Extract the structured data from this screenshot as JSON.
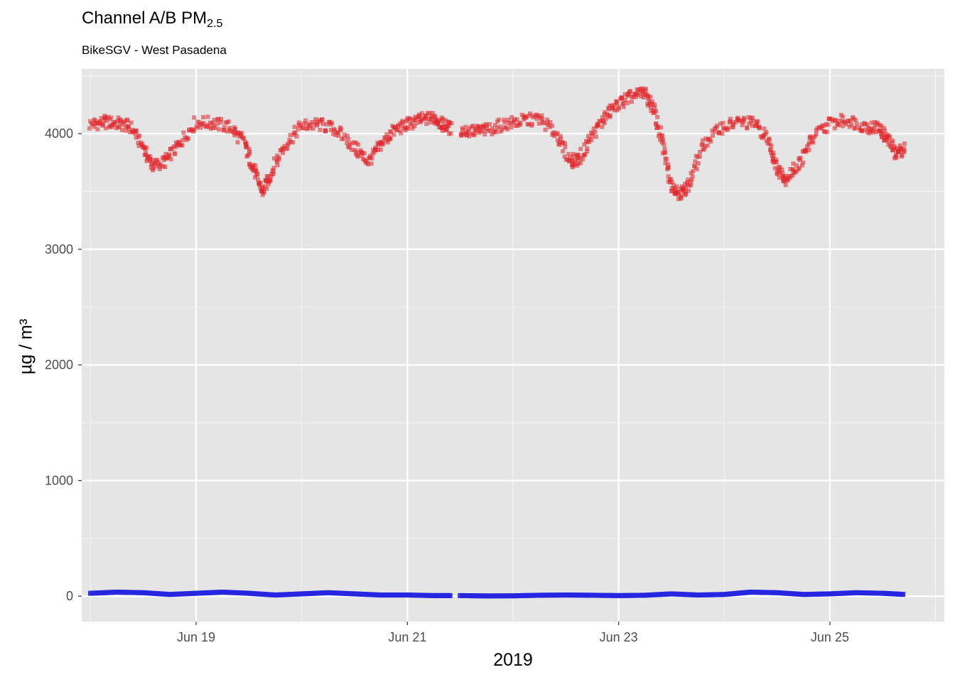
{
  "title": {
    "main": "Channel A/B PM",
    "sub": "2.5"
  },
  "subtitle": "BikeSGV - West Pasadena",
  "chart_data": {
    "type": "scatter",
    "title": "Channel A/B PM2.5",
    "subtitle": "BikeSGV - West Pasadena",
    "xlabel": "2019",
    "ylabel": "µg / m³",
    "xlim": [
      "2019-06-17 22:00",
      "2019-06-26 02:00"
    ],
    "ylim": [
      -220,
      4560
    ],
    "y_ticks": [
      0,
      1000,
      2000,
      3000,
      4000
    ],
    "x_ticks": [
      {
        "label": "Jun 19",
        "date": "2019-06-19"
      },
      {
        "label": "Jun 21",
        "date": "2019-06-21"
      },
      {
        "label": "Jun 23",
        "date": "2019-06-23"
      },
      {
        "label": "Jun 25",
        "date": "2019-06-25"
      }
    ],
    "grid": true,
    "background": "#e5e5e5",
    "series": [
      {
        "color": "#e0262a",
        "points": [
          [
            "2019-06-18 00:00",
            4080
          ],
          [
            "2019-06-18 03:00",
            4100
          ],
          [
            "2019-06-18 06:00",
            4090
          ],
          [
            "2019-06-18 09:00",
            4060
          ],
          [
            "2019-06-18 12:00",
            3880
          ],
          [
            "2019-06-18 14:00",
            3720
          ],
          [
            "2019-06-18 17:00",
            3760
          ],
          [
            "2019-06-18 20:00",
            3900
          ],
          [
            "2019-06-19 00:00",
            4100
          ],
          [
            "2019-06-19 04:00",
            4090
          ],
          [
            "2019-06-19 08:00",
            4050
          ],
          [
            "2019-06-19 11:00",
            3920
          ],
          [
            "2019-06-19 13:00",
            3700
          ],
          [
            "2019-06-19 15:00",
            3490
          ],
          [
            "2019-06-19 17:00",
            3650
          ],
          [
            "2019-06-19 20:00",
            3900
          ],
          [
            "2019-06-20 00:00",
            4070
          ],
          [
            "2019-06-20 04:00",
            4080
          ],
          [
            "2019-06-20 08:00",
            4030
          ],
          [
            "2019-06-20 12:00",
            3880
          ],
          [
            "2019-06-20 15:00",
            3760
          ],
          [
            "2019-06-20 18:00",
            3900
          ],
          [
            "2019-06-20 21:00",
            4030
          ],
          [
            "2019-06-21 00:00",
            4080
          ],
          [
            "2019-06-21 03:00",
            4120
          ],
          [
            "2019-06-21 06:00",
            4140
          ],
          [
            "2019-06-21 08:00",
            4080
          ],
          [
            "2019-06-21 10:00",
            4040
          ],
          [
            "2019-06-21 12:00",
            4030
          ],
          [
            "2019-06-21 15:00",
            4020
          ],
          [
            "2019-06-21 18:00",
            4030
          ],
          [
            "2019-06-21 22:00",
            4080
          ],
          [
            "2019-06-22 02:00",
            4110
          ],
          [
            "2019-06-22 06:00",
            4130
          ],
          [
            "2019-06-22 10:00",
            3990
          ],
          [
            "2019-06-22 13:00",
            3760
          ],
          [
            "2019-06-22 15:00",
            3780
          ],
          [
            "2019-06-22 18:00",
            3990
          ],
          [
            "2019-06-22 21:00",
            4150
          ],
          [
            "2019-06-23 00:00",
            4260
          ],
          [
            "2019-06-23 03:00",
            4320
          ],
          [
            "2019-06-23 06:00",
            4360
          ],
          [
            "2019-06-23 08:00",
            4200
          ],
          [
            "2019-06-23 10:00",
            3900
          ],
          [
            "2019-06-23 12:00",
            3560
          ],
          [
            "2019-06-23 14:00",
            3480
          ],
          [
            "2019-06-23 16:00",
            3560
          ],
          [
            "2019-06-23 19:00",
            3890
          ],
          [
            "2019-06-23 23:00",
            4050
          ],
          [
            "2019-06-24 03:00",
            4100
          ],
          [
            "2019-06-24 07:00",
            4090
          ],
          [
            "2019-06-24 10:00",
            3940
          ],
          [
            "2019-06-24 12:00",
            3700
          ],
          [
            "2019-06-24 14:00",
            3610
          ],
          [
            "2019-06-24 17:00",
            3740
          ],
          [
            "2019-06-24 20:00",
            3960
          ],
          [
            "2019-06-25 00:00",
            4090
          ],
          [
            "2019-06-25 04:00",
            4120
          ],
          [
            "2019-06-25 08:00",
            4060
          ],
          [
            "2019-06-25 11:00",
            4050
          ],
          [
            "2019-06-25 13:00",
            3960
          ],
          [
            "2019-06-25 15:00",
            3830
          ],
          [
            "2019-06-25 17:00",
            3880
          ]
        ]
      },
      {
        "color": "#2626e0",
        "points": [
          [
            "2019-06-18 00:00",
            25
          ],
          [
            "2019-06-18 06:00",
            35
          ],
          [
            "2019-06-18 12:00",
            30
          ],
          [
            "2019-06-18 18:00",
            15
          ],
          [
            "2019-06-19 00:00",
            25
          ],
          [
            "2019-06-19 06:00",
            35
          ],
          [
            "2019-06-19 12:00",
            25
          ],
          [
            "2019-06-19 18:00",
            10
          ],
          [
            "2019-06-20 00:00",
            20
          ],
          [
            "2019-06-20 06:00",
            30
          ],
          [
            "2019-06-20 12:00",
            20
          ],
          [
            "2019-06-20 18:00",
            10
          ],
          [
            "2019-06-21 00:00",
            10
          ],
          [
            "2019-06-21 06:00",
            5
          ],
          [
            "2019-06-21 10:00",
            5
          ],
          [
            "2019-06-21 12:00",
            5
          ],
          [
            "2019-06-21 18:00",
            2
          ],
          [
            "2019-06-22 00:00",
            3
          ],
          [
            "2019-06-22 06:00",
            8
          ],
          [
            "2019-06-22 12:00",
            10
          ],
          [
            "2019-06-22 18:00",
            8
          ],
          [
            "2019-06-23 00:00",
            5
          ],
          [
            "2019-06-23 06:00",
            8
          ],
          [
            "2019-06-23 12:00",
            20
          ],
          [
            "2019-06-23 18:00",
            10
          ],
          [
            "2019-06-24 00:00",
            15
          ],
          [
            "2019-06-24 06:00",
            35
          ],
          [
            "2019-06-24 12:00",
            30
          ],
          [
            "2019-06-24 18:00",
            15
          ],
          [
            "2019-06-25 00:00",
            20
          ],
          [
            "2019-06-25 06:00",
            30
          ],
          [
            "2019-06-25 12:00",
            25
          ],
          [
            "2019-06-25 17:00",
            15
          ]
        ]
      }
    ]
  }
}
